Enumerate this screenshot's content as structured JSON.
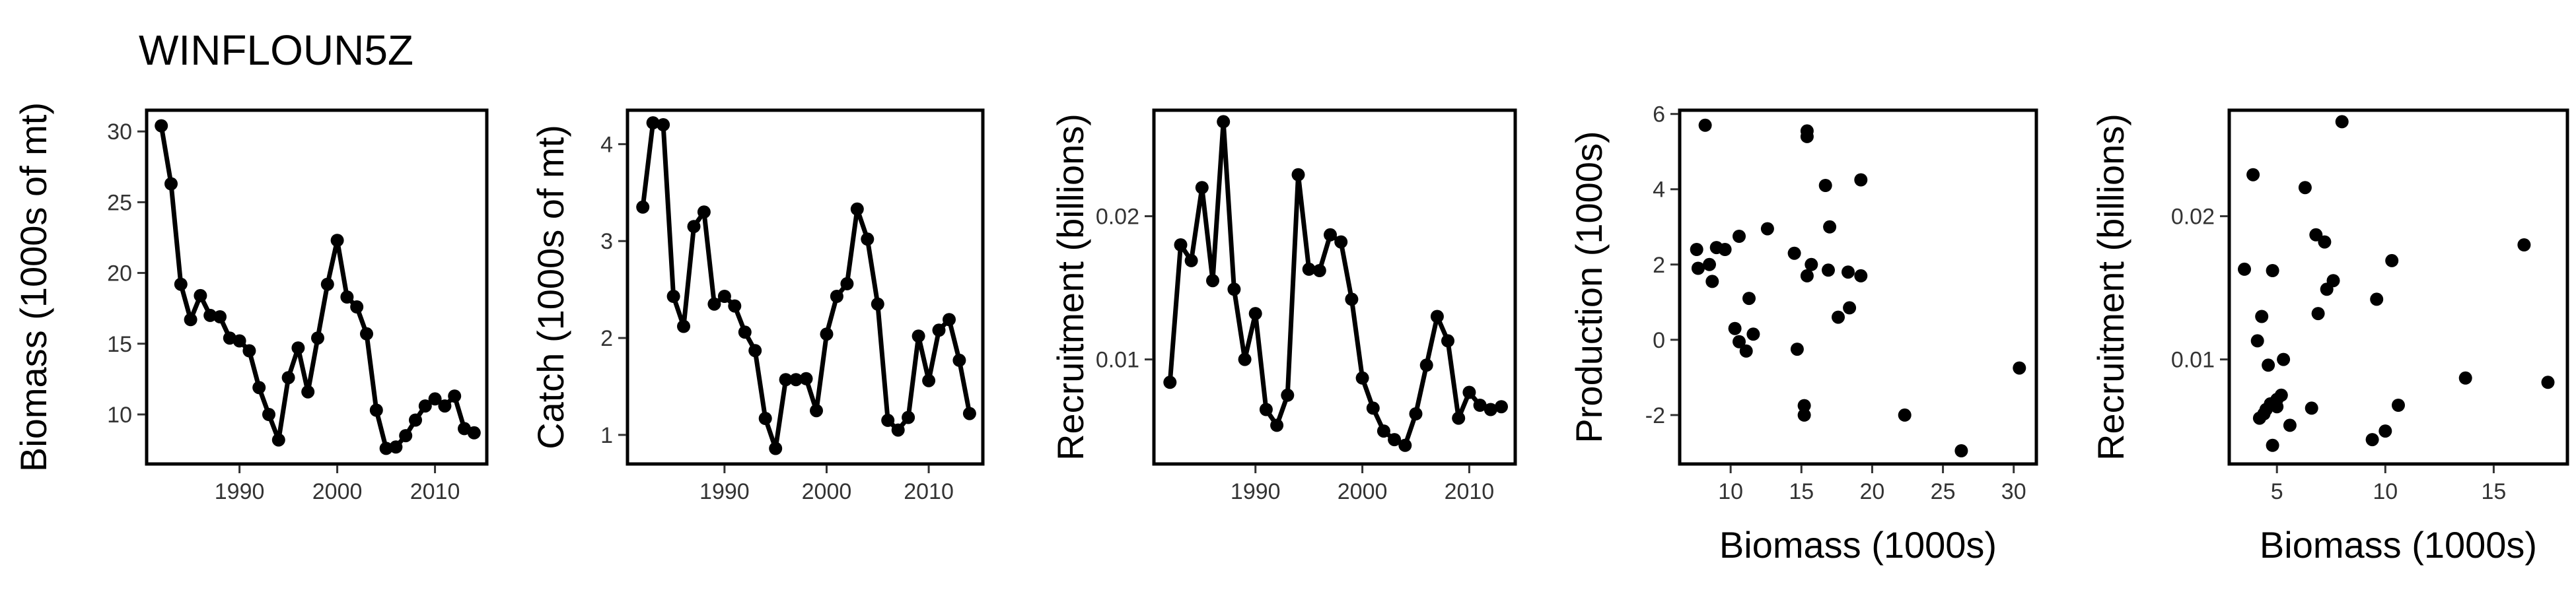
{
  "figure": {
    "title": "WINFLOUN5Z"
  },
  "chart_data": [
    {
      "type": "line",
      "title": "",
      "xlabel": "",
      "ylabel": "Biomass (1000s of mt)",
      "xlim": [
        1980.5,
        2015.3
      ],
      "ylim": [
        6.5,
        31.5
      ],
      "xticks": [
        1990,
        2000,
        2010
      ],
      "yticks": [
        10,
        15,
        20,
        25,
        30
      ],
      "x": [
        1982,
        1983,
        1984,
        1985,
        1986,
        1987,
        1988,
        1989,
        1990,
        1991,
        1992,
        1993,
        1994,
        1995,
        1996,
        1997,
        1998,
        1999,
        2000,
        2001,
        2002,
        2003,
        2004,
        2005,
        2006,
        2007,
        2008,
        2009,
        2010,
        2011,
        2012,
        2013,
        2014
      ],
      "y": [
        30.4,
        26.3,
        19.2,
        16.7,
        18.4,
        17.0,
        16.9,
        15.4,
        15.2,
        14.5,
        11.9,
        10.0,
        8.2,
        12.6,
        14.7,
        11.6,
        15.4,
        19.2,
        22.3,
        18.3,
        17.6,
        15.7,
        10.3,
        7.6,
        7.7,
        8.5,
        9.6,
        10.6,
        11.1,
        10.6,
        11.3,
        9.0,
        8.7
      ]
    },
    {
      "type": "line",
      "title": "",
      "xlabel": "",
      "ylabel": "Catch (1000s of mt)",
      "xlim": [
        1980.5,
        2015.3
      ],
      "ylim": [
        0.7,
        4.35
      ],
      "xticks": [
        1990,
        2000,
        2010
      ],
      "yticks": [
        1,
        2,
        3,
        4
      ],
      "x": [
        1982,
        1983,
        1984,
        1985,
        1986,
        1987,
        1988,
        1989,
        1990,
        1991,
        1992,
        1993,
        1994,
        1995,
        1996,
        1997,
        1998,
        1999,
        2000,
        2001,
        2002,
        2003,
        2004,
        2005,
        2006,
        2007,
        2008,
        2009,
        2010,
        2011,
        2012,
        2013,
        2014
      ],
      "y": [
        3.35,
        4.22,
        4.2,
        2.43,
        2.12,
        3.15,
        3.3,
        2.35,
        2.43,
        2.33,
        2.06,
        1.87,
        1.17,
        0.86,
        1.57,
        1.57,
        1.58,
        1.25,
        2.04,
        2.43,
        2.56,
        3.33,
        3.02,
        2.35,
        1.15,
        1.05,
        1.18,
        2.02,
        1.56,
        2.08,
        2.19,
        1.77,
        1.22
      ]
    },
    {
      "type": "line",
      "title": "",
      "xlabel": "",
      "ylabel": "Recruitment (billions)",
      "xlim": [
        1980.5,
        2014.3
      ],
      "ylim": [
        0.0027,
        0.0274
      ],
      "xticks": [
        1990,
        2000,
        2010
      ],
      "yticks": [
        0.01,
        0.02
      ],
      "ytick_labels": [
        "0.01",
        "0.02"
      ],
      "x": [
        1982,
        1983,
        1984,
        1985,
        1986,
        1987,
        1988,
        1989,
        1990,
        1991,
        1992,
        1993,
        1994,
        1995,
        1996,
        1997,
        1998,
        1999,
        2000,
        2001,
        2002,
        2003,
        2004,
        2005,
        2006,
        2007,
        2008,
        2009,
        2010,
        2011,
        2012,
        2013
      ],
      "y": [
        0.0084,
        0.018,
        0.0169,
        0.022,
        0.0155,
        0.0266,
        0.0149,
        0.01,
        0.0132,
        0.0065,
        0.0054,
        0.0075,
        0.0229,
        0.0163,
        0.0162,
        0.0187,
        0.0182,
        0.0142,
        0.0087,
        0.0066,
        0.005,
        0.0044,
        0.004,
        0.0062,
        0.0096,
        0.013,
        0.0113,
        0.0059,
        0.0077,
        0.0068,
        0.0065,
        0.0067
      ]
    },
    {
      "type": "scatter",
      "title": "",
      "xlabel": "Biomass (1000s)",
      "ylabel": "Production (1000s)",
      "xlim": [
        6.4,
        31.6
      ],
      "ylim": [
        -3.3,
        6.1
      ],
      "xticks": [
        10,
        15,
        20,
        25,
        30
      ],
      "yticks": [
        -2,
        0,
        2,
        4,
        6
      ],
      "x": [
        7.6,
        8.2,
        7.7,
        8.5,
        9.6,
        10.6,
        11.3,
        10.3,
        11.1,
        10.6,
        11.6,
        12.6,
        14.7,
        15.4,
        15.7,
        16.7,
        17.0,
        17.6,
        18.3,
        19.2,
        15.2,
        16.9,
        18.4,
        15.4,
        15.2,
        19.2,
        22.3,
        26.3,
        30.4,
        8.7,
        9.0,
        14.5,
        15.4
      ],
      "y": [
        2.4,
        5.7,
        1.9,
        2.0,
        2.4,
        2.75,
        1.1,
        0.3,
        -0.3,
        -0.05,
        0.15,
        2.95,
        -0.25,
        1.7,
        2.0,
        4.1,
        3.0,
        0.6,
        1.8,
        4.25,
        -1.75,
        1.85,
        0.85,
        5.4,
        -2.0,
        1.7,
        -2.0,
        -2.95,
        -0.75,
        1.55,
        2.45,
        2.3,
        5.55
      ]
    },
    {
      "type": "scatter",
      "title": "",
      "xlabel": "Biomass (1000s)",
      "ylabel": "Recruitment (billions)",
      "xlim": [
        2.8,
        18.4
      ],
      "ylim": [
        0.0027,
        0.0274
      ],
      "xticks": [
        5,
        10,
        15
      ],
      "yticks": [
        0.01,
        0.02
      ],
      "ytick_labels": [
        "0.01",
        "0.02"
      ],
      "x": [
        3.5,
        3.9,
        4.1,
        4.3,
        4.4,
        4.6,
        4.8,
        5.0,
        5.3,
        5.6,
        6.3,
        6.6,
        6.8,
        7.2,
        7.6,
        8.0,
        9.4,
        9.6,
        10.0,
        10.3,
        10.6,
        13.7,
        16.4,
        17.5,
        4.2,
        4.5,
        4.8,
        5.0,
        5.2,
        6.9,
        7.3,
        4.7
      ],
      "y": [
        0.0163,
        0.0229,
        0.0113,
        0.013,
        0.0062,
        0.0096,
        0.0162,
        0.0072,
        0.01,
        0.0054,
        0.022,
        0.0066,
        0.0187,
        0.0182,
        0.0155,
        0.0266,
        0.0044,
        0.0142,
        0.005,
        0.0169,
        0.0068,
        0.0087,
        0.018,
        0.0084,
        0.0059,
        0.0065,
        0.004,
        0.0067,
        0.0075,
        0.0132,
        0.0149,
        0.0069
      ]
    }
  ]
}
